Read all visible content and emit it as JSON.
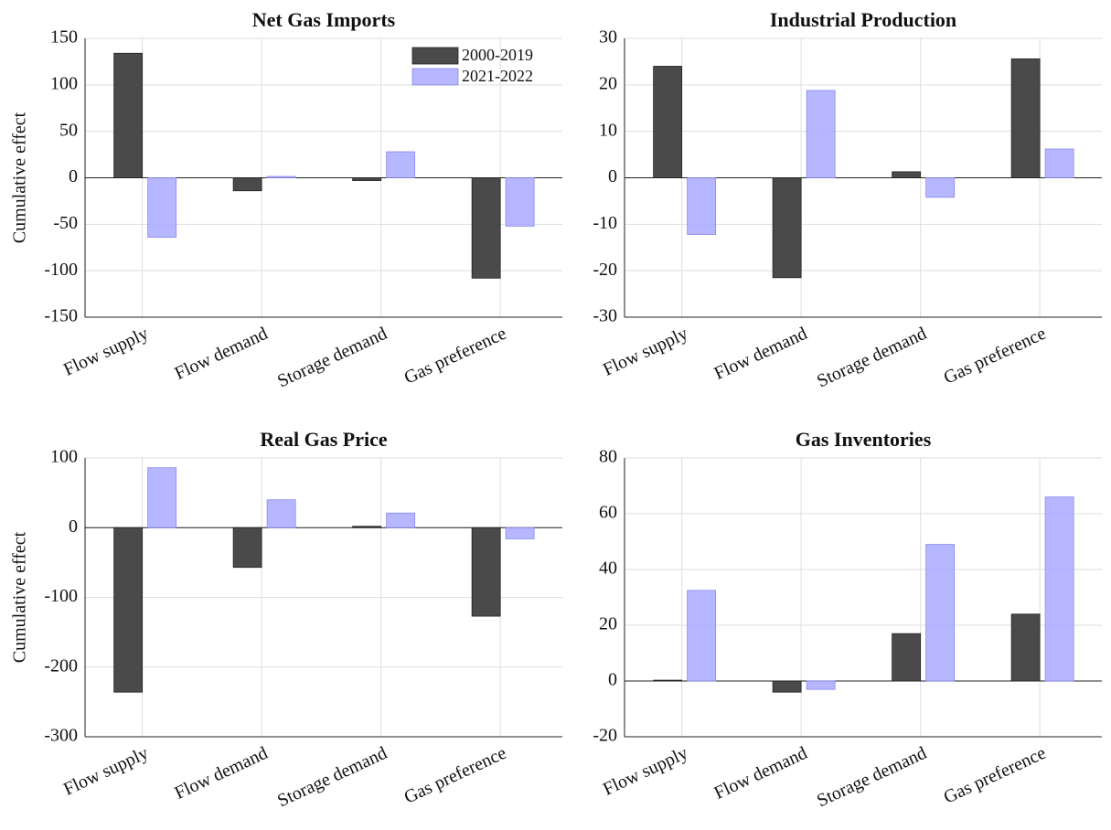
{
  "chart_data": [
    {
      "type": "bar",
      "title": "Net Gas Imports",
      "ylabel": "Cumulative effect",
      "categories": [
        "Flow supply",
        "Flow demand",
        "Storage demand",
        "Gas preference"
      ],
      "series": [
        {
          "name": "2000-2019",
          "color": "#404040",
          "values": [
            134,
            -14,
            -3,
            -108
          ]
        },
        {
          "name": "2021-2022",
          "color": "#aaaaff",
          "values": [
            -64,
            1.5,
            28,
            -52
          ]
        }
      ],
      "ylim": [
        -150,
        150
      ],
      "yticks": [
        -150,
        -100,
        -50,
        0,
        50,
        100,
        150
      ],
      "grid": true,
      "legend": "upper right"
    },
    {
      "type": "bar",
      "title": "Industrial Production",
      "categories": [
        "Flow supply",
        "Flow demand",
        "Storage demand",
        "Gas preference"
      ],
      "series": [
        {
          "name": "2000-2019",
          "color": "#404040",
          "values": [
            24,
            -21.5,
            1.3,
            25.6
          ]
        },
        {
          "name": "2021-2022",
          "color": "#aaaaff",
          "values": [
            -12.2,
            18.8,
            -4.2,
            6.2
          ]
        }
      ],
      "ylim": [
        -30,
        30
      ],
      "yticks": [
        -30,
        -20,
        -10,
        0,
        10,
        20,
        30
      ],
      "grid": true
    },
    {
      "type": "bar",
      "title": "Real Gas Price",
      "ylabel": "Cumulative effect",
      "categories": [
        "Flow supply",
        "Flow demand",
        "Storage demand",
        "Gas preference"
      ],
      "series": [
        {
          "name": "2000-2019",
          "color": "#404040",
          "values": [
            -236,
            -57,
            2,
            -127
          ]
        },
        {
          "name": "2021-2022",
          "color": "#aaaaff",
          "values": [
            86,
            40,
            21,
            -16
          ]
        }
      ],
      "ylim": [
        -300,
        100
      ],
      "yticks": [
        -300,
        -200,
        -100,
        0,
        100
      ],
      "grid": true
    },
    {
      "type": "bar",
      "title": "Gas Inventories",
      "categories": [
        "Flow supply",
        "Flow demand",
        "Storage demand",
        "Gas preference"
      ],
      "series": [
        {
          "name": "2000-2019",
          "color": "#404040",
          "values": [
            0.3,
            -4,
            17,
            24
          ]
        },
        {
          "name": "2021-2022",
          "color": "#aaaaff",
          "values": [
            32.5,
            -3,
            49,
            66
          ]
        }
      ],
      "ylim": [
        -20,
        80
      ],
      "yticks": [
        -20,
        0,
        20,
        40,
        60,
        80
      ],
      "grid": true
    }
  ]
}
